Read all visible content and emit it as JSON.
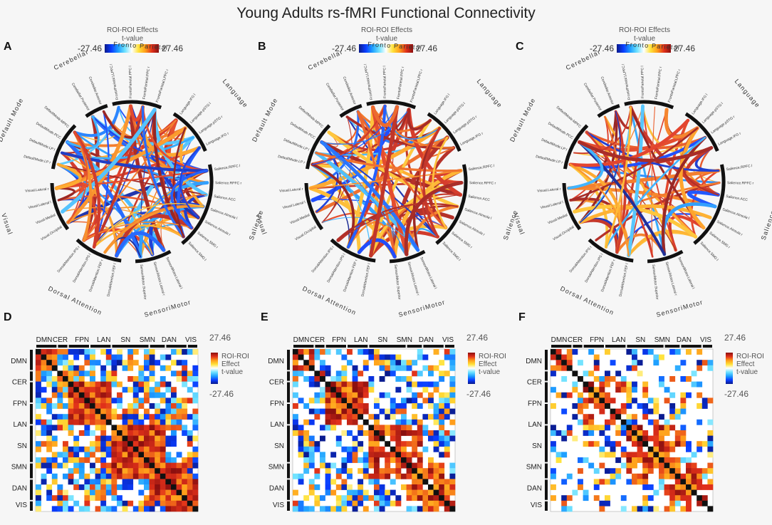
{
  "title": "Young Adults rs-fMRI Functional Connectivity",
  "colors": {
    "cmap": [
      "#0a1a8a",
      "#0a3cff",
      "#1fa0ff",
      "#6fe2ff",
      "#ffffff",
      "#ffe23a",
      "#ff9e1a",
      "#e0301a",
      "#8a0f0f"
    ],
    "matrix_diagonal": "#111111"
  },
  "chart_data": [
    {
      "panel": "A",
      "type": "connectogram",
      "colorbar": {
        "title_line1": "ROI-ROI Effects",
        "title_line2": "t-value",
        "min_label": "-27.46",
        "max_label": "27.46",
        "min": -27.46,
        "max": 27.46
      },
      "networks": [
        "Fronto Parietal",
        "Language",
        "Salience",
        "SensoriMotor",
        "Dorsal Attention",
        "Visual",
        "Default Mode",
        "Cerebellar"
      ],
      "rois": [
        "FrontoParietal.LLPFC l",
        "FrontoParietal.PPC l",
        "FrontoParietal.PPC r",
        "FrontoParietal.LPFC r",
        "Language.IFG l",
        "Language.pSTG l",
        "Language.pSTG r",
        "Language.IFG r",
        "Salience.RPFC l",
        "Salience.RPFC r",
        "Salience.ACC",
        "Salience.AInsula l",
        "Salience.AInsula r",
        "Salience.SMG r",
        "Salience.SMG l",
        "SensoriMotor.Lateral l",
        "SensoriMotor.Lateral r",
        "SensoriMotor.Superior",
        "DorsalAttention.FEF l",
        "DorsalAttention.FEF r",
        "DorsalAttention.IPS l",
        "DorsalAttention.IPS r",
        "Visual.Occipital",
        "Visual.Medial",
        "Visual.Lateral l",
        "Visual.Lateral r",
        "DefaultMode.LP r",
        "DefaultMode.LP l",
        "DefaultMode.PCC",
        "DefaultMode.MPFC",
        "Cerebellar.Posterior",
        "Cerebellar.Anterior"
      ]
    },
    {
      "panel": "B",
      "type": "connectogram",
      "colorbar": {
        "title_line1": "ROI-ROI Effects",
        "title_line2": "t-value",
        "min_label": "-27.46",
        "max_label": "27.46",
        "min": -27.46,
        "max": 27.46
      },
      "networks": [
        "Fronto Parietal",
        "Language",
        "Salience",
        "SensoriMotor",
        "Dorsal Attention",
        "Visual",
        "Default Mode",
        "Cerebellar"
      ]
    },
    {
      "panel": "C",
      "type": "connectogram",
      "colorbar": {
        "title_line1": "ROI-ROI Effects",
        "title_line2": "t-value",
        "min_label": "-27.46",
        "max_label": "27.46",
        "min": -27.46,
        "max": 27.46
      },
      "networks": [
        "Fronto Parietal",
        "Language",
        "Salience",
        "SensoriMotor",
        "Dorsal Attention",
        "Visual",
        "Default Mode",
        "Cerebellar"
      ]
    },
    {
      "panel": "D",
      "type": "heatmap",
      "top_labels": [
        "DMN",
        "CER",
        "FPN",
        "LAN",
        "SN",
        "SMN",
        "DAN",
        "VIS"
      ],
      "side_labels": [
        "DMN",
        "CER",
        "FPN",
        "LAN",
        "SN",
        "SMN",
        "DAN",
        "VIS"
      ],
      "colorbar": {
        "max_label": "27.46",
        "min_label": "-27.46",
        "title_lines": [
          "ROI-ROI",
          "Effect",
          "t-value"
        ],
        "min": -27.46,
        "max": 27.46
      },
      "density": 0.85
    },
    {
      "panel": "E",
      "type": "heatmap",
      "top_labels": [
        "DMN",
        "CER",
        "FPN",
        "LAN",
        "SN",
        "SMN",
        "DAN",
        "VIS"
      ],
      "side_labels": [
        "DMN",
        "CER",
        "FPN",
        "LAN",
        "SN",
        "SMN",
        "DAN",
        "VIS"
      ],
      "colorbar": {
        "max_label": "27.46",
        "min_label": "-27.46",
        "title_lines": [
          "ROI-ROI",
          "Effect",
          "t-value"
        ],
        "min": -27.46,
        "max": 27.46
      },
      "density": 0.7
    },
    {
      "panel": "F",
      "type": "heatmap",
      "top_labels": [
        "DMN",
        "CER",
        "FPN",
        "LAN",
        "SN",
        "SMN",
        "DAN",
        "VIS"
      ],
      "side_labels": [
        "DMN",
        "CER",
        "FPN",
        "LAN",
        "SN",
        "SMN",
        "DAN",
        "VIS"
      ],
      "colorbar": {
        "max_label": "27.46",
        "min_label": "-27.46",
        "title_lines": [
          "ROI-ROI",
          "Effect",
          "t-value"
        ],
        "min": -27.46,
        "max": 27.46
      },
      "density": 0.5
    }
  ]
}
